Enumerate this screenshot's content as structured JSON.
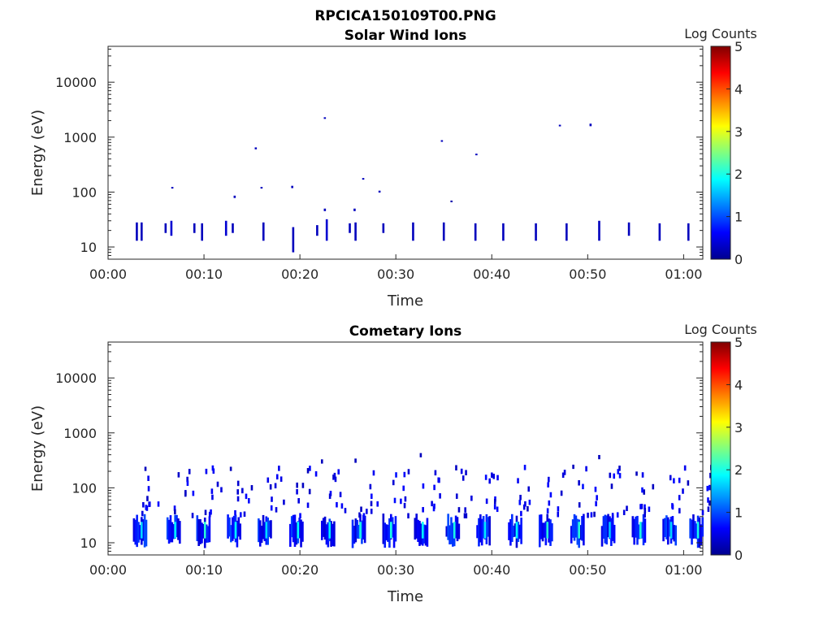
{
  "figure_title": "RPCICA150109T00.PNG",
  "colorbar": {
    "label": "Log Counts",
    "min": 0,
    "max": 5,
    "ticks": [
      "0",
      "1",
      "2",
      "3",
      "4",
      "5"
    ],
    "colormap": "jet"
  },
  "chart_data": [
    {
      "type": "heatmap",
      "title": "Solar Wind Ions",
      "xlabel": "Time",
      "ylabel": "Energy (eV)",
      "x_unit": "minutes after 00:00",
      "xlim": [
        0,
        62
      ],
      "ylim": [
        6,
        45000
      ],
      "y_scale": "log",
      "x_ticks": [
        0,
        10,
        20,
        30,
        40,
        50,
        60
      ],
      "x_tick_labels": [
        "00:00",
        "00:10",
        "00:20",
        "00:30",
        "00:40",
        "00:50",
        "01:00"
      ],
      "y_ticks": [
        10,
        100,
        1000,
        10000
      ],
      "y_tick_labels": [
        "10",
        "100",
        "1000",
        "10000"
      ],
      "series": [
        {
          "t": 3.0,
          "e_low": 13,
          "e_high": 28,
          "log_counts": 0.3
        },
        {
          "t": 3.5,
          "e_low": 13,
          "e_high": 28,
          "log_counts": 0.3
        },
        {
          "t": 6.0,
          "e_low": 18,
          "e_high": 27,
          "log_counts": 0.3
        },
        {
          "t": 6.6,
          "e_low": 16,
          "e_high": 30,
          "log_counts": 0.4
        },
        {
          "t": 6.7,
          "e_low": 118,
          "e_high": 124,
          "log_counts": 0.3
        },
        {
          "t": 9.0,
          "e_low": 18,
          "e_high": 27,
          "log_counts": 0.3
        },
        {
          "t": 9.8,
          "e_low": 13,
          "e_high": 27,
          "log_counts": 0.3
        },
        {
          "t": 12.3,
          "e_low": 16,
          "e_high": 30,
          "log_counts": 0.4
        },
        {
          "t": 13.0,
          "e_low": 18,
          "e_high": 27,
          "log_counts": 0.3
        },
        {
          "t": 13.2,
          "e_low": 78,
          "e_high": 86,
          "log_counts": 0.3
        },
        {
          "t": 15.4,
          "e_low": 600,
          "e_high": 650,
          "log_counts": 0.3
        },
        {
          "t": 16.0,
          "e_low": 118,
          "e_high": 124,
          "log_counts": 0.3
        },
        {
          "t": 16.2,
          "e_low": 13,
          "e_high": 28,
          "log_counts": 0.3
        },
        {
          "t": 19.2,
          "e_low": 118,
          "e_high": 130,
          "log_counts": 0.3
        },
        {
          "t": 19.3,
          "e_low": 8,
          "e_high": 23,
          "log_counts": 0.3
        },
        {
          "t": 21.8,
          "e_low": 16,
          "e_high": 25,
          "log_counts": 0.3
        },
        {
          "t": 22.6,
          "e_low": 2150,
          "e_high": 2300,
          "log_counts": 0.3
        },
        {
          "t": 22.6,
          "e_low": 45,
          "e_high": 50,
          "log_counts": 0.3
        },
        {
          "t": 22.8,
          "e_low": 13,
          "e_high": 32,
          "log_counts": 0.4
        },
        {
          "t": 25.2,
          "e_low": 18,
          "e_high": 27,
          "log_counts": 0.3
        },
        {
          "t": 25.7,
          "e_low": 45,
          "e_high": 50,
          "log_counts": 0.3
        },
        {
          "t": 25.8,
          "e_low": 13,
          "e_high": 28,
          "log_counts": 0.3
        },
        {
          "t": 26.6,
          "e_low": 170,
          "e_high": 180,
          "log_counts": 0.3
        },
        {
          "t": 28.3,
          "e_low": 98,
          "e_high": 106,
          "log_counts": 0.3
        },
        {
          "t": 28.7,
          "e_low": 18,
          "e_high": 27,
          "log_counts": 0.3
        },
        {
          "t": 31.8,
          "e_low": 13,
          "e_high": 28,
          "log_counts": 0.3
        },
        {
          "t": 34.8,
          "e_low": 830,
          "e_high": 880,
          "log_counts": 0.3
        },
        {
          "t": 35.0,
          "e_low": 13,
          "e_high": 28,
          "log_counts": 0.3
        },
        {
          "t": 35.8,
          "e_low": 66,
          "e_high": 70,
          "log_counts": 0.2
        },
        {
          "t": 38.3,
          "e_low": 13,
          "e_high": 27,
          "log_counts": 0.3
        },
        {
          "t": 38.4,
          "e_low": 470,
          "e_high": 500,
          "log_counts": 0.3
        },
        {
          "t": 41.2,
          "e_low": 13,
          "e_high": 27,
          "log_counts": 0.3
        },
        {
          "t": 44.6,
          "e_low": 13,
          "e_high": 27,
          "log_counts": 0.3
        },
        {
          "t": 47.1,
          "e_low": 1580,
          "e_high": 1680,
          "log_counts": 0.3
        },
        {
          "t": 47.8,
          "e_low": 13,
          "e_high": 27,
          "log_counts": 0.3
        },
        {
          "t": 50.3,
          "e_low": 1580,
          "e_high": 1760,
          "log_counts": 0.3
        },
        {
          "t": 51.2,
          "e_low": 13,
          "e_high": 30,
          "log_counts": 0.3
        },
        {
          "t": 54.3,
          "e_low": 16,
          "e_high": 28,
          "log_counts": 0.3
        },
        {
          "t": 57.5,
          "e_low": 13,
          "e_high": 27,
          "log_counts": 0.3
        },
        {
          "t": 60.5,
          "e_low": 13,
          "e_high": 27,
          "log_counts": 0.3
        }
      ]
    },
    {
      "type": "heatmap",
      "title": "Cometary Ions",
      "xlabel": "Time",
      "ylabel": "Energy (eV)",
      "x_unit": "minutes after 00:00",
      "xlim": [
        0,
        62
      ],
      "ylim": [
        6,
        45000
      ],
      "y_scale": "log",
      "x_ticks": [
        0,
        10,
        20,
        30,
        40,
        50,
        60
      ],
      "x_tick_labels": [
        "00:00",
        "00:10",
        "00:20",
        "00:30",
        "00:40",
        "00:50",
        "01:00"
      ],
      "y_ticks": [
        10,
        100,
        1000,
        10000
      ],
      "y_tick_labels": [
        "10",
        "100",
        "1000",
        "10000"
      ],
      "bursts": [
        3.0,
        6.5,
        9.6,
        12.8,
        16.0,
        19.3,
        22.6,
        25.8,
        29.0,
        32.3,
        35.6,
        38.8,
        42.1,
        45.3,
        48.6,
        51.8,
        55.0,
        58.2,
        61.0
      ],
      "high_points": [
        {
          "t": 3.9,
          "e": 220,
          "log_counts": 0.3
        },
        {
          "t": 12.8,
          "e": 220,
          "log_counts": 0.3
        },
        {
          "t": 22.3,
          "e": 300,
          "log_counts": 0.3
        },
        {
          "t": 25.8,
          "e": 310,
          "log_counts": 0.3
        },
        {
          "t": 32.6,
          "e": 390,
          "log_counts": 0.3
        },
        {
          "t": 48.5,
          "e": 240,
          "log_counts": 0.3
        },
        {
          "t": 51.2,
          "e": 360,
          "log_counts": 0.3
        },
        {
          "t": 55.1,
          "e": 180,
          "log_counts": 0.3
        }
      ]
    }
  ]
}
